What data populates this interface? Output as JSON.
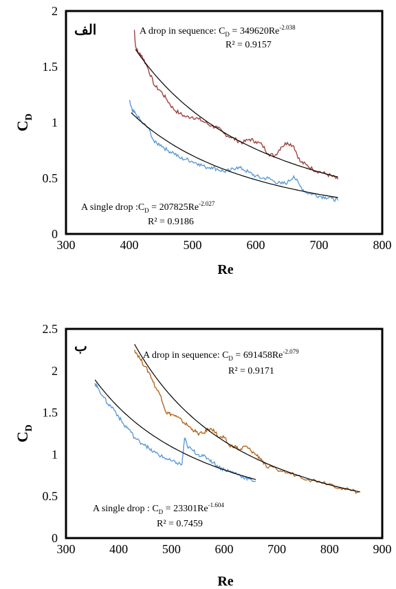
{
  "chart_data": [
    {
      "type": "line",
      "panel_label": "الف",
      "xlabel": "Re",
      "ylabel_main": "C",
      "ylabel_sub": "D",
      "xlim": [
        300,
        800
      ],
      "ylim": [
        0,
        2
      ],
      "xticks": [
        "300",
        "400",
        "500",
        "600",
        "700",
        "800"
      ],
      "yticks": [
        "0",
        "0.5",
        "1",
        "1.5",
        "2"
      ],
      "grid": false,
      "annotations": {
        "sequence_prefix": "A drop in sequence: C",
        "sequence_sub": "D",
        "sequence_mid": " = 349620Re",
        "sequence_exp": "-2.038",
        "sequence_r2": "R² = 0.9157",
        "single_prefix": "A single drop :C",
        "single_sub": "D",
        "single_mid": " = 207825Re",
        "single_exp": "-2.027",
        "single_r2": "R² = 0.9186"
      },
      "series": [
        {
          "kind": "data",
          "group": "sequence",
          "color": "#a0413c",
          "x": [
            408,
            410,
            415,
            420,
            430,
            440,
            450,
            460,
            470,
            480,
            490,
            500,
            510,
            520,
            530,
            540,
            550,
            560,
            570,
            580,
            590,
            600,
            610,
            620,
            630,
            640,
            650,
            660,
            670,
            680,
            690,
            700,
            710,
            720,
            730
          ],
          "y": [
            1.83,
            1.68,
            1.62,
            1.6,
            1.48,
            1.33,
            1.28,
            1.2,
            1.12,
            1.08,
            1.05,
            1.05,
            1.03,
            1.0,
            0.97,
            0.95,
            0.9,
            0.87,
            0.84,
            0.82,
            0.85,
            0.83,
            0.8,
            0.72,
            0.7,
            0.78,
            0.82,
            0.79,
            0.65,
            0.62,
            0.58,
            0.56,
            0.54,
            0.52,
            0.49
          ]
        },
        {
          "kind": "data",
          "group": "single",
          "color": "#5b9bd5",
          "x": [
            400,
            405,
            410,
            420,
            430,
            440,
            450,
            460,
            470,
            480,
            490,
            500,
            510,
            520,
            530,
            540,
            550,
            560,
            570,
            580,
            590,
            600,
            610,
            620,
            630,
            640,
            650,
            660,
            670,
            680,
            690,
            700,
            710,
            720,
            730
          ],
          "y": [
            1.2,
            1.1,
            1.08,
            1.0,
            0.95,
            0.82,
            0.8,
            0.75,
            0.73,
            0.68,
            0.67,
            0.65,
            0.63,
            0.6,
            0.6,
            0.58,
            0.56,
            0.57,
            0.6,
            0.58,
            0.55,
            0.52,
            0.5,
            0.5,
            0.47,
            0.45,
            0.46,
            0.52,
            0.43,
            0.37,
            0.36,
            0.34,
            0.33,
            0.32,
            0.3
          ]
        },
        {
          "kind": "fit",
          "group": "sequence",
          "color": "#000000",
          "coef": 349620,
          "exp": -2.038,
          "xrange": [
            410,
            730
          ]
        },
        {
          "kind": "fit",
          "group": "single",
          "color": "#000000",
          "coef": 207825,
          "exp": -2.027,
          "xrange": [
            403,
            730
          ]
        }
      ]
    },
    {
      "type": "line",
      "panel_label": "ب",
      "xlabel": "Re",
      "ylabel_main": "C",
      "ylabel_sub": "D",
      "xlim": [
        300,
        900
      ],
      "ylim": [
        0,
        2.5
      ],
      "xticks": [
        "300",
        "400",
        "500",
        "600",
        "700",
        "800",
        "900"
      ],
      "yticks": [
        "0",
        "0.5",
        "1",
        "1.5",
        "2",
        "2.5"
      ],
      "grid": false,
      "annotations": {
        "sequence_prefix": "A  drop in sequence: C",
        "sequence_sub": "D",
        "sequence_mid": " = 691458Re",
        "sequence_exp": "-2.079",
        "sequence_r2": "R² = 0.9171",
        "single_prefix": "A single drop : C",
        "single_sub": "D",
        "single_mid": " = 23301Re",
        "single_exp": "-1.604",
        "single_r2": "R² = 0.7459"
      },
      "series": [
        {
          "kind": "data",
          "group": "sequence",
          "color": "#b5651d",
          "x": [
            430,
            440,
            450,
            460,
            470,
            480,
            490,
            500,
            510,
            520,
            530,
            540,
            550,
            560,
            570,
            580,
            590,
            600,
            610,
            620,
            630,
            640,
            650,
            660,
            670,
            680,
            700,
            720,
            740,
            760,
            780,
            800,
            820,
            840,
            855
          ],
          "y": [
            2.25,
            2.15,
            2.05,
            1.95,
            1.8,
            1.7,
            1.5,
            1.48,
            1.45,
            1.4,
            1.35,
            1.3,
            1.25,
            1.25,
            1.3,
            1.3,
            1.2,
            1.2,
            1.1,
            1.1,
            1.05,
            1.1,
            1.05,
            1.0,
            0.95,
            0.85,
            0.82,
            0.78,
            0.75,
            0.7,
            0.68,
            0.65,
            0.6,
            0.57,
            0.55
          ]
        },
        {
          "kind": "data",
          "group": "single",
          "color": "#5b9bd5",
          "x": [
            355,
            360,
            370,
            380,
            390,
            400,
            410,
            420,
            430,
            440,
            450,
            460,
            470,
            480,
            490,
            500,
            510,
            520,
            525,
            530,
            540,
            550,
            560,
            570,
            580,
            590,
            600,
            610,
            620,
            630,
            640,
            650,
            660
          ],
          "y": [
            1.85,
            1.8,
            1.7,
            1.6,
            1.55,
            1.45,
            1.35,
            1.3,
            1.2,
            1.15,
            1.12,
            1.05,
            1.02,
            0.98,
            0.95,
            0.92,
            0.9,
            0.88,
            1.2,
            1.1,
            1.05,
            1.0,
            0.98,
            0.95,
            0.9,
            0.85,
            0.82,
            0.8,
            0.78,
            0.75,
            0.72,
            0.7,
            0.68
          ]
        },
        {
          "kind": "fit",
          "group": "sequence",
          "color": "#000000",
          "coef": 691458,
          "exp": -2.079,
          "xrange": [
            430,
            858
          ]
        },
        {
          "kind": "fit",
          "group": "single",
          "color": "#000000",
          "coef": 23301,
          "exp": -1.604,
          "xrange": [
            355,
            660
          ]
        }
      ]
    }
  ]
}
